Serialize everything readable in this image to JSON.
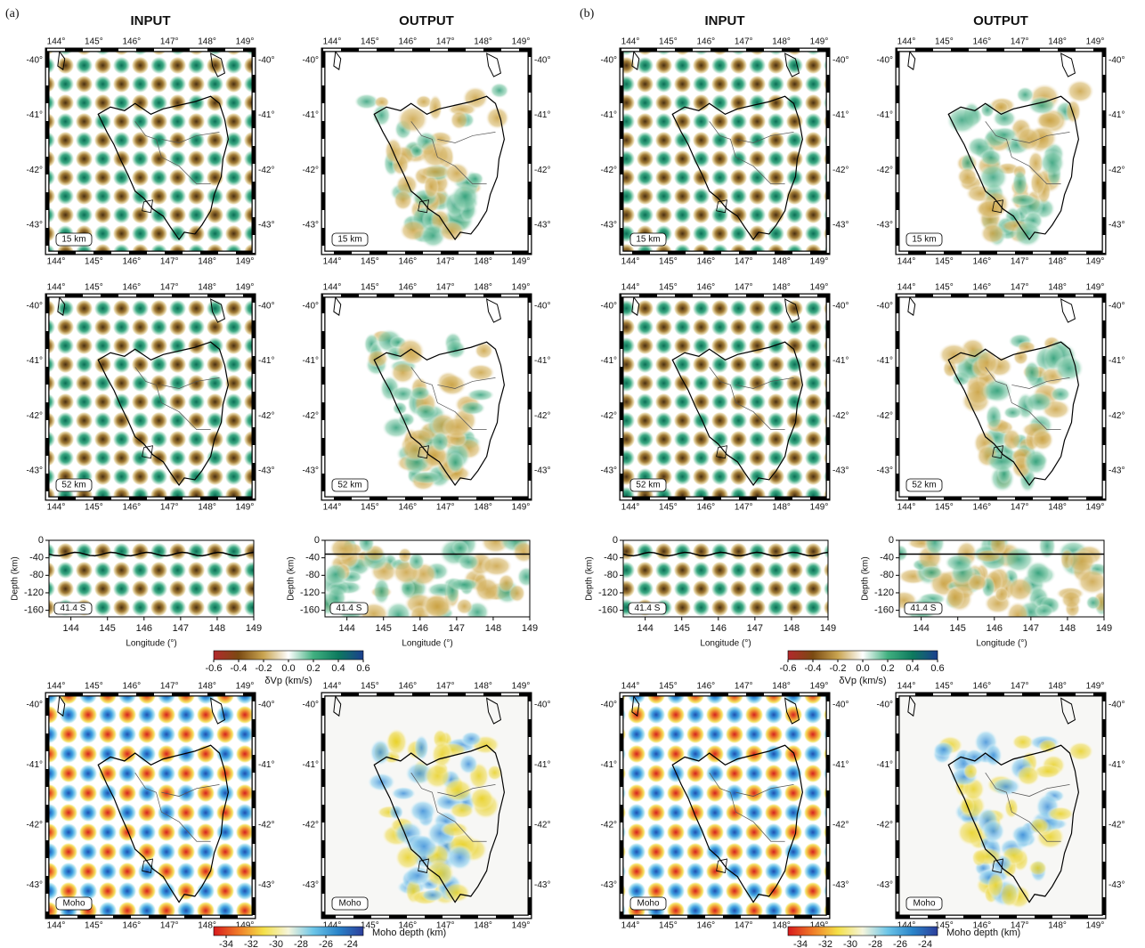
{
  "figure_labels": [
    "(a)",
    "(b)"
  ],
  "columns": [
    "INPUT",
    "OUTPUT"
  ],
  "map_lon_ticks": [
    "144°",
    "145°",
    "146°",
    "147°",
    "148°",
    "149°"
  ],
  "map_lat_ticks": [
    "-40°",
    "-41°",
    "-42°",
    "-43°"
  ],
  "map_layers": [
    "15 km",
    "52 km"
  ],
  "moho_label": "Moho",
  "section": {
    "label": "41.4 S",
    "ylabel": "Depth (km)",
    "xlabel": "Longitude (°)",
    "yticks": [
      0,
      -40,
      -80,
      -120,
      -160
    ],
    "ylim": [
      -175,
      0
    ],
    "xticks": [
      144,
      145,
      146,
      147,
      148,
      149
    ],
    "xlim": [
      143.4,
      149
    ]
  },
  "colorbars": [
    {
      "label": "δVp (km/s)",
      "ticks": [
        -0.6,
        -0.4,
        -0.2,
        {
          "value": 0,
          "label": "0.0"
        },
        0.2,
        0.4,
        0.6
      ],
      "lim": [
        -0.6,
        0.6
      ],
      "colors": [
        "#b3282c",
        "#7a4a12",
        "#c9a450",
        "#ffffff",
        "#41b080",
        "#0d7a5e",
        "#1b3f8f"
      ]
    },
    {
      "label": "Moho depth (km)",
      "ticks": [
        -34,
        -32,
        -30,
        -28,
        -26,
        -24
      ],
      "lim": [
        -35,
        -23
      ],
      "colors": [
        "#d7191c",
        "#f07c28",
        "#f4e048",
        "#f5f5dc",
        "#6cc5e8",
        "#2a84c9",
        "#2c3e9b"
      ]
    }
  ]
}
